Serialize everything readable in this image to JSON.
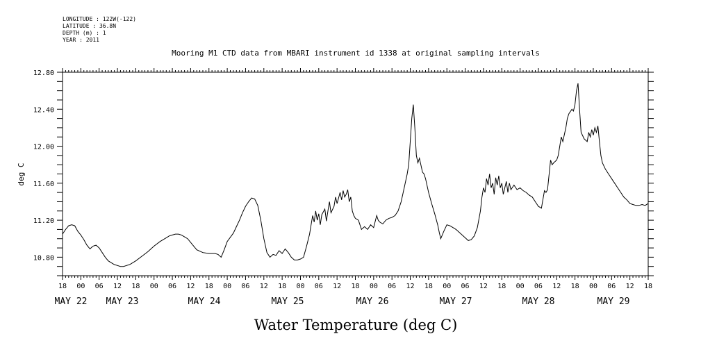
{
  "header": {
    "longitude": "LONGITUDE : 122W(-122)",
    "latitude": "LATITUDE : 36.8N",
    "depth": "DEPTH (m) : 1",
    "year": "YEAR : 2011"
  },
  "chart_data": {
    "type": "line",
    "title": "Mooring M1 CTD data from MBARI instrument id 1338 at original sampling intervals",
    "ylabel": "deg C",
    "xlabel": "Water Temperature (deg C)",
    "ylim": [
      10.6,
      12.8
    ],
    "yticks": [
      "10.80",
      "11.20",
      "11.60",
      "12.00",
      "12.40",
      "12.80"
    ],
    "x_hour_labels": [
      "18",
      "00",
      "06",
      "12",
      "18",
      "00",
      "06",
      "12",
      "18",
      "00",
      "06",
      "12",
      "18",
      "00",
      "06",
      "12",
      "18",
      "00",
      "06",
      "12",
      "18",
      "00",
      "06",
      "12",
      "18",
      "00",
      "06",
      "12",
      "18",
      "00",
      "06",
      "12",
      "18"
    ],
    "day_labels": [
      "MAY 22",
      "MAY 23",
      "MAY 24",
      "MAY 25",
      "MAY 26",
      "MAY 27",
      "MAY 28",
      "MAY 29"
    ],
    "x_unit": "hours since 2011-05-22 18:00",
    "x_range": [
      0,
      192
    ],
    "series": [
      {
        "values": [
          [
            0,
            11.05
          ],
          [
            1,
            11.1
          ],
          [
            2,
            11.14
          ],
          [
            3,
            11.15
          ],
          [
            4,
            11.14
          ],
          [
            5,
            11.08
          ],
          [
            6,
            11.04
          ],
          [
            7,
            10.99
          ],
          [
            8,
            10.93
          ],
          [
            9,
            10.89
          ],
          [
            10,
            10.92
          ],
          [
            11,
            10.93
          ],
          [
            12,
            10.9
          ],
          [
            13,
            10.85
          ],
          [
            14,
            10.8
          ],
          [
            15,
            10.76
          ],
          [
            16,
            10.74
          ],
          [
            17,
            10.72
          ],
          [
            18,
            10.71
          ],
          [
            19,
            10.7
          ],
          [
            20,
            10.7
          ],
          [
            21,
            10.71
          ],
          [
            22,
            10.72
          ],
          [
            24,
            10.76
          ],
          [
            26,
            10.81
          ],
          [
            28,
            10.86
          ],
          [
            30,
            10.92
          ],
          [
            32,
            10.97
          ],
          [
            34,
            11.01
          ],
          [
            35,
            11.03
          ],
          [
            36,
            11.04
          ],
          [
            37,
            11.05
          ],
          [
            38,
            11.05
          ],
          [
            39,
            11.04
          ],
          [
            40,
            11.02
          ],
          [
            41,
            11.0
          ],
          [
            42,
            10.96
          ],
          [
            43,
            10.92
          ],
          [
            44,
            10.88
          ],
          [
            46,
            10.85
          ],
          [
            48,
            10.84
          ],
          [
            50,
            10.84
          ],
          [
            51,
            10.83
          ],
          [
            52,
            10.8
          ],
          [
            53,
            10.88
          ],
          [
            54,
            10.97
          ],
          [
            56,
            11.06
          ],
          [
            57,
            11.13
          ],
          [
            58,
            11.2
          ],
          [
            59,
            11.28
          ],
          [
            60,
            11.35
          ],
          [
            61,
            11.4
          ],
          [
            62,
            11.44
          ],
          [
            63,
            11.43
          ],
          [
            64,
            11.36
          ],
          [
            65,
            11.2
          ],
          [
            66,
            11.0
          ],
          [
            67,
            10.85
          ],
          [
            68,
            10.8
          ],
          [
            69,
            10.83
          ],
          [
            70,
            10.82
          ],
          [
            71,
            10.87
          ],
          [
            72,
            10.84
          ],
          [
            73,
            10.89
          ],
          [
            74,
            10.85
          ],
          [
            75,
            10.8
          ],
          [
            76,
            10.77
          ],
          [
            77,
            10.77
          ],
          [
            78,
            10.78
          ],
          [
            79,
            10.8
          ],
          [
            80,
            10.92
          ],
          [
            81,
            11.05
          ],
          [
            81.5,
            11.15
          ],
          [
            82,
            11.25
          ],
          [
            82.5,
            11.18
          ],
          [
            83,
            11.3
          ],
          [
            83.5,
            11.2
          ],
          [
            84,
            11.27
          ],
          [
            84.5,
            11.15
          ],
          [
            85,
            11.26
          ],
          [
            86,
            11.32
          ],
          [
            86.5,
            11.19
          ],
          [
            87,
            11.3
          ],
          [
            87.5,
            11.4
          ],
          [
            88,
            11.28
          ],
          [
            89,
            11.35
          ],
          [
            89.5,
            11.45
          ],
          [
            90,
            11.38
          ],
          [
            91,
            11.5
          ],
          [
            91.5,
            11.42
          ],
          [
            92,
            11.52
          ],
          [
            92.5,
            11.45
          ],
          [
            93,
            11.48
          ],
          [
            93.5,
            11.53
          ],
          [
            94,
            11.4
          ],
          [
            94.5,
            11.45
          ],
          [
            95,
            11.3
          ],
          [
            95.5,
            11.25
          ],
          [
            96,
            11.22
          ],
          [
            97,
            11.2
          ],
          [
            97.5,
            11.15
          ],
          [
            98,
            11.1
          ],
          [
            99,
            11.13
          ],
          [
            100,
            11.1
          ],
          [
            101,
            11.15
          ],
          [
            102,
            11.12
          ],
          [
            103,
            11.25
          ],
          [
            103.5,
            11.2
          ],
          [
            104,
            11.18
          ],
          [
            105,
            11.16
          ],
          [
            106,
            11.2
          ],
          [
            107,
            11.22
          ],
          [
            108,
            11.23
          ],
          [
            109,
            11.25
          ],
          [
            110,
            11.3
          ],
          [
            111,
            11.4
          ],
          [
            112,
            11.55
          ],
          [
            113,
            11.7
          ],
          [
            113.5,
            11.8
          ],
          [
            114,
            12.05
          ],
          [
            114.5,
            12.3
          ],
          [
            115,
            12.45
          ],
          [
            115.5,
            12.2
          ],
          [
            116,
            11.9
          ],
          [
            116.5,
            11.82
          ],
          [
            117,
            11.87
          ],
          [
            118,
            11.72
          ],
          [
            118.5,
            11.7
          ],
          [
            119,
            11.65
          ],
          [
            120,
            11.5
          ],
          [
            121,
            11.38
          ],
          [
            122,
            11.27
          ],
          [
            123,
            11.15
          ],
          [
            123.5,
            11.07
          ],
          [
            124,
            11.0
          ],
          [
            125,
            11.08
          ],
          [
            126,
            11.15
          ],
          [
            127,
            11.14
          ],
          [
            128,
            11.12
          ],
          [
            129,
            11.1
          ],
          [
            130,
            11.07
          ],
          [
            131,
            11.04
          ],
          [
            132,
            11.01
          ],
          [
            133,
            10.98
          ],
          [
            134,
            10.99
          ],
          [
            135,
            11.03
          ],
          [
            136,
            11.12
          ],
          [
            137,
            11.3
          ],
          [
            137.5,
            11.45
          ],
          [
            138,
            11.55
          ],
          [
            138.5,
            11.5
          ],
          [
            139,
            11.65
          ],
          [
            139.5,
            11.58
          ],
          [
            140,
            11.7
          ],
          [
            140.5,
            11.55
          ],
          [
            141,
            11.6
          ],
          [
            141.5,
            11.48
          ],
          [
            142,
            11.66
          ],
          [
            142.5,
            11.58
          ],
          [
            143,
            11.68
          ],
          [
            143.5,
            11.55
          ],
          [
            144,
            11.6
          ],
          [
            144.5,
            11.48
          ],
          [
            145,
            11.55
          ],
          [
            145.5,
            11.62
          ],
          [
            146,
            11.5
          ],
          [
            146.5,
            11.6
          ],
          [
            147,
            11.53
          ],
          [
            148,
            11.58
          ],
          [
            149,
            11.53
          ],
          [
            150,
            11.55
          ],
          [
            151,
            11.52
          ],
          [
            152,
            11.5
          ],
          [
            153,
            11.47
          ],
          [
            154,
            11.45
          ],
          [
            155,
            11.4
          ],
          [
            156,
            11.35
          ],
          [
            157,
            11.33
          ],
          [
            158,
            11.52
          ],
          [
            158.5,
            11.5
          ],
          [
            159,
            11.53
          ],
          [
            160,
            11.85
          ],
          [
            160.5,
            11.8
          ],
          [
            161,
            11.82
          ],
          [
            162,
            11.85
          ],
          [
            162.5,
            11.9
          ],
          [
            163,
            12.0
          ],
          [
            163.5,
            12.1
          ],
          [
            164,
            12.05
          ],
          [
            165,
            12.2
          ],
          [
            165.5,
            12.3
          ],
          [
            166,
            12.35
          ],
          [
            167,
            12.4
          ],
          [
            167.5,
            12.38
          ],
          [
            168,
            12.45
          ],
          [
            168.5,
            12.6
          ],
          [
            169,
            12.68
          ],
          [
            169.5,
            12.4
          ],
          [
            170,
            12.15
          ],
          [
            171,
            12.08
          ],
          [
            172,
            12.05
          ],
          [
            172.5,
            12.15
          ],
          [
            173,
            12.1
          ],
          [
            173.5,
            12.18
          ],
          [
            174,
            12.12
          ],
          [
            174.5,
            12.2
          ],
          [
            175,
            12.15
          ],
          [
            175.5,
            12.22
          ],
          [
            176,
            12.05
          ],
          [
            176.5,
            11.9
          ],
          [
            177,
            11.82
          ],
          [
            178,
            11.75
          ],
          [
            179,
            11.7
          ],
          [
            180,
            11.65
          ],
          [
            181,
            11.6
          ],
          [
            182,
            11.55
          ],
          [
            183,
            11.5
          ],
          [
            184,
            11.45
          ],
          [
            185,
            11.42
          ],
          [
            186,
            11.38
          ],
          [
            187,
            11.37
          ],
          [
            188,
            11.36
          ],
          [
            189,
            11.36
          ],
          [
            190,
            11.37
          ],
          [
            191,
            11.36
          ],
          [
            192,
            11.38
          ]
        ]
      }
    ]
  }
}
